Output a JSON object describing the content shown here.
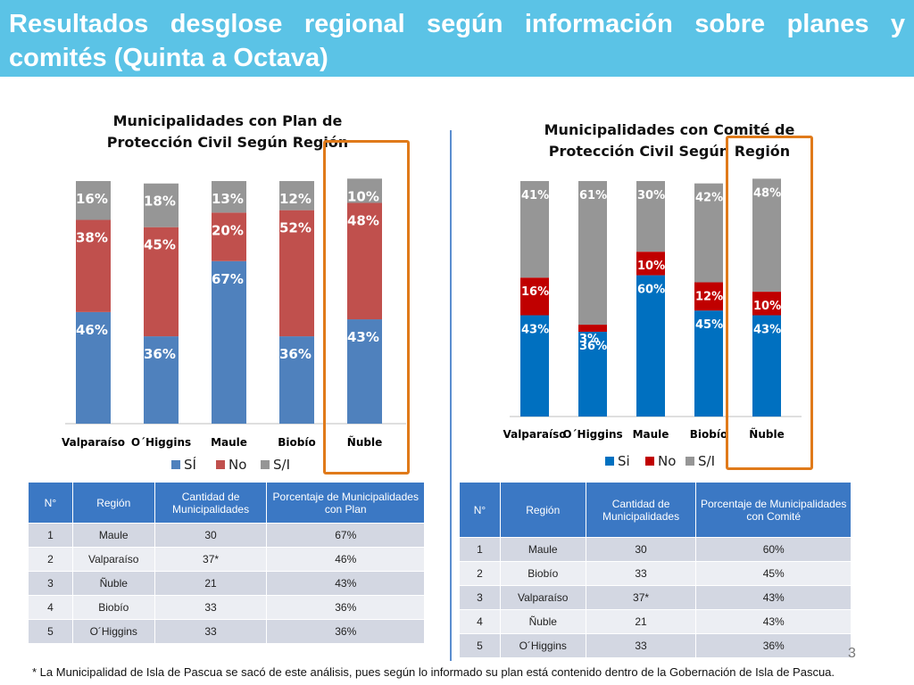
{
  "title": "Resultados desglose regional según información sobre planes y comités (Quinta a Octava)",
  "colors": {
    "header": "#5bc3e6",
    "si_left": "#4f81bd",
    "no_left": "#c0504d",
    "si_right": "#0070c0",
    "no_right": "#c00000",
    "sl": "#969696",
    "highlight": "#e07a1a"
  },
  "chart_data": [
    {
      "type": "bar",
      "stacked": true,
      "title": "Municipalidades con Plan de Protección Civil Según Región",
      "categories": [
        "Valparaíso",
        "O´Higgins",
        "Maule",
        "Biobío",
        "Ñuble"
      ],
      "series": [
        {
          "name": "SÍ",
          "values": [
            46,
            36,
            67,
            36,
            43
          ],
          "labels": [
            "46%",
            "36%",
            "67%",
            "36%",
            "43%"
          ]
        },
        {
          "name": "No",
          "values": [
            38,
            45,
            20,
            52,
            48
          ],
          "labels": [
            "38%",
            "45%",
            "20%",
            "52%",
            "48%"
          ]
        },
        {
          "name": "S/I",
          "values": [
            16,
            18,
            13,
            12,
            10
          ],
          "labels": [
            "16%",
            "18%",
            "13%",
            "12%",
            "10%"
          ]
        }
      ],
      "ylim": [
        0,
        100
      ],
      "highlight": "Ñuble"
    },
    {
      "type": "bar",
      "stacked": true,
      "title": "Municipalidades con Comité de Protección Civil Según Región",
      "categories": [
        "Valparaíso",
        "O´Higgins",
        "Maule",
        "Biobío",
        "Ñuble"
      ],
      "series": [
        {
          "name": "Si",
          "values": [
            43,
            36,
            60,
            45,
            43
          ],
          "labels": [
            "43%",
            "36%",
            "60%",
            "45%",
            "43%"
          ]
        },
        {
          "name": "No",
          "values": [
            16,
            3,
            10,
            12,
            10
          ],
          "labels": [
            "16%",
            "3%",
            "10%",
            "12%",
            "10%"
          ]
        },
        {
          "name": "S/I",
          "values": [
            41,
            61,
            30,
            42,
            48
          ],
          "labels": [
            "41%",
            "61%",
            "30%",
            "42%",
            "48%"
          ]
        }
      ],
      "ylim": [
        0,
        100
      ],
      "highlight": "Ñuble"
    }
  ],
  "table_left": {
    "headers": [
      "N°",
      "Región",
      "Cantidad de Municipalidades",
      "Porcentaje de Municipalidades con Plan"
    ],
    "rows": [
      [
        "1",
        "Maule",
        "30",
        "67%"
      ],
      [
        "2",
        "Valparaíso",
        "37*",
        "46%"
      ],
      [
        "3",
        "Ñuble",
        "21",
        "43%"
      ],
      [
        "4",
        "Biobío",
        "33",
        "36%"
      ],
      [
        "5",
        "O´Higgins",
        "33",
        "36%"
      ]
    ]
  },
  "table_right": {
    "headers": [
      "N°",
      "Región",
      "Cantidad de Municipalidades",
      "Porcentaje de Municipalidades con Comité"
    ],
    "rows": [
      [
        "1",
        "Maule",
        "30",
        "60%"
      ],
      [
        "2",
        "Biobío",
        "33",
        "45%"
      ],
      [
        "3",
        "Valparaíso",
        "37*",
        "43%"
      ],
      [
        "4",
        "Ñuble",
        "21",
        "43%"
      ],
      [
        "5",
        "O´Higgins",
        "33",
        "36%"
      ]
    ]
  },
  "footnote": "* La Municipalidad de Isla de Pascua se sacó de este análisis, pues según lo informado su plan está contenido dentro de la Gobernación de Isla de Pascua.",
  "page_number": "3"
}
